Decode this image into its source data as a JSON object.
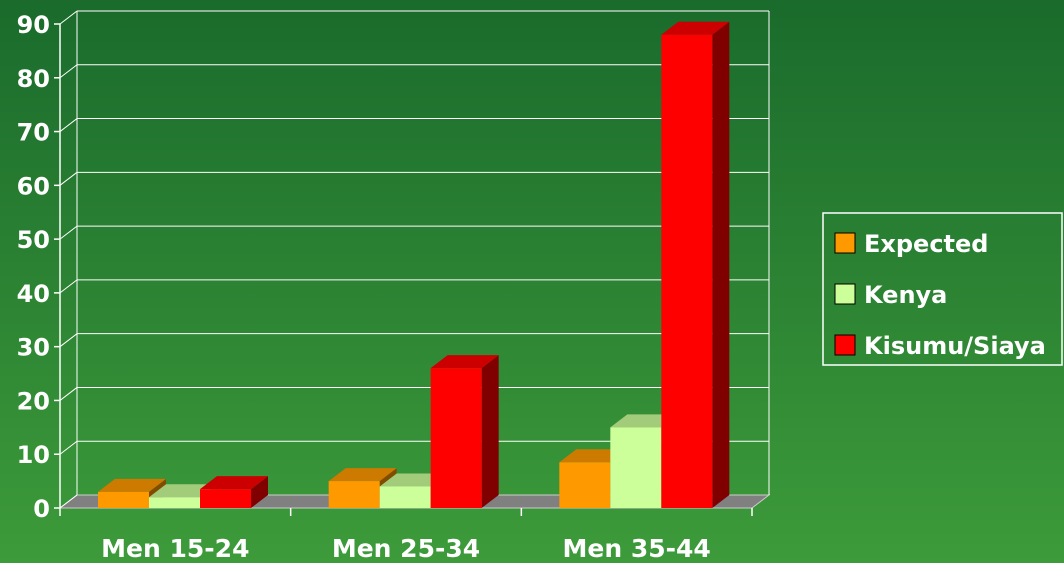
{
  "chart_data": {
    "type": "bar3d",
    "categories": [
      "Men 15-24",
      "Men 25-34",
      "Men 35-44"
    ],
    "series": [
      {
        "name": "Expected",
        "color": "#ff9900",
        "values": [
          3,
          5,
          8.5
        ]
      },
      {
        "name": "Kenya",
        "color": "#ccff99",
        "values": [
          2,
          4,
          15
        ]
      },
      {
        "name": "Kisumu/Siaya",
        "color": "#ff0000",
        "values": [
          3.5,
          26,
          88
        ]
      }
    ],
    "ylim": [
      0,
      90
    ],
    "yticks": [
      0,
      10,
      20,
      30,
      40,
      50,
      60,
      70,
      80,
      90
    ],
    "grid": true,
    "legend": "right"
  }
}
